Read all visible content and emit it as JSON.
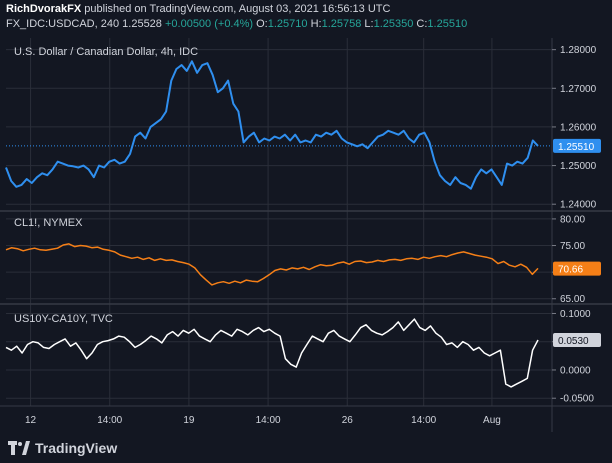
{
  "header": {
    "author": "RichDvorakFX",
    "published_text": "published on TradingView.com, August 03, 2021 16:56:13 UTC",
    "symbol": "FX_IDC:USDCAD, 240",
    "last": "1.25528",
    "change": "+0.00500 (+0.4%)",
    "o_label": "O:",
    "o_value": "1.25710",
    "h_label": "H:",
    "h_value": "1.25758",
    "l_label": "L:",
    "l_value": "1.25350",
    "c_label": "C:",
    "c_value": "1.25510"
  },
  "footer": {
    "logo_text": "TradingView"
  },
  "colors": {
    "background": "#131722",
    "usdcad": "#2f8fef",
    "crude": "#f57f17",
    "spread": "#ffffff",
    "grid": "#2a2e39"
  },
  "chart_data": [
    {
      "type": "line",
      "title": "U.S. Dollar / Canadian Dollar, 4h, IDC",
      "series": [
        {
          "values": [
            1.2495,
            1.246,
            1.2445,
            1.245,
            1.2465,
            1.2455,
            1.247,
            1.248,
            1.2475,
            1.249,
            1.251,
            1.2505,
            1.25,
            1.2498,
            1.2495,
            1.25,
            1.249,
            1.247,
            1.25,
            1.2495,
            1.251,
            1.2515,
            1.2505,
            1.251,
            1.253,
            1.2575,
            1.2585,
            1.257,
            1.26,
            1.261,
            1.262,
            1.264,
            1.272,
            1.275,
            1.276,
            1.2745,
            1.277,
            1.274,
            1.276,
            1.2765,
            1.2735,
            1.269,
            1.27,
            1.272,
            1.266,
            1.264,
            1.256,
            1.2575,
            1.2585,
            1.256,
            1.257,
            1.2565,
            1.2575,
            1.257,
            1.258,
            1.2565,
            1.258,
            1.256,
            1.2565,
            1.256,
            1.258,
            1.2575,
            1.2585,
            1.258,
            1.259,
            1.257,
            1.256,
            1.2555,
            1.255,
            1.2555,
            1.2545,
            1.256,
            1.2575,
            1.258,
            1.259,
            1.2585,
            1.258,
            1.259,
            1.257,
            1.256,
            1.258,
            1.2585,
            1.256,
            1.251,
            1.2475,
            1.246,
            1.245,
            1.247,
            1.2455,
            1.245,
            1.244,
            1.247,
            1.249,
            1.248,
            1.249,
            1.247,
            1.245,
            1.2505,
            1.25,
            1.251,
            1.2505,
            1.252,
            1.2565,
            1.2551
          ],
          "last_value": "1.25510"
        }
      ],
      "y_ticks": [
        "1.28000",
        "1.27000",
        "1.26000",
        "1.25000",
        "1.24000"
      ],
      "ylim": [
        1.2385,
        1.2825
      ]
    },
    {
      "type": "line",
      "title": "CL1!, NYMEX",
      "series": [
        {
          "values": [
            74.2,
            74.6,
            74.4,
            74.0,
            74.3,
            74.5,
            74.2,
            74.1,
            74.3,
            74.5,
            75.1,
            75.3,
            74.8,
            75.0,
            74.9,
            74.6,
            74.7,
            74.3,
            74.1,
            73.8,
            73.2,
            72.9,
            72.6,
            72.8,
            72.4,
            72.7,
            72.2,
            72.5,
            72.2,
            72.3,
            72.0,
            71.8,
            71.5,
            70.8,
            69.5,
            68.5,
            67.6,
            68.0,
            68.2,
            67.9,
            68.3,
            68.0,
            68.5,
            68.3,
            68.2,
            68.8,
            69.5,
            70.3,
            70.6,
            70.4,
            70.8,
            70.6,
            70.9,
            70.5,
            71.0,
            71.4,
            71.2,
            71.3,
            71.7,
            71.9,
            71.5,
            72.0,
            72.1,
            71.8,
            71.9,
            72.2,
            72.0,
            72.3,
            72.4,
            72.2,
            72.5,
            72.6,
            72.4,
            72.8,
            72.6,
            72.9,
            73.1,
            72.9,
            73.3,
            73.6,
            73.8,
            73.5,
            73.2,
            73.0,
            72.8,
            72.5,
            71.6,
            72.0,
            71.3,
            71.0,
            71.5,
            70.9,
            69.6,
            70.7
          ],
          "last_value": "70.66"
        }
      ],
      "y_ticks": [
        "80.00",
        "75.00",
        "70.00",
        "65.00"
      ],
      "ylim": [
        64.2,
        81.3
      ]
    },
    {
      "type": "line",
      "title": "US10Y-CA10Y, TVC",
      "series": [
        {
          "values": [
            0.04,
            0.035,
            0.042,
            0.03,
            0.045,
            0.05,
            0.048,
            0.04,
            0.038,
            0.045,
            0.05,
            0.055,
            0.042,
            0.048,
            0.035,
            0.02,
            0.03,
            0.045,
            0.05,
            0.052,
            0.055,
            0.06,
            0.058,
            0.05,
            0.04,
            0.045,
            0.052,
            0.06,
            0.055,
            0.048,
            0.062,
            0.068,
            0.06,
            0.07,
            0.065,
            0.072,
            0.06,
            0.055,
            0.05,
            0.062,
            0.07,
            0.065,
            0.06,
            0.072,
            0.068,
            0.062,
            0.07,
            0.075,
            0.068,
            0.072,
            0.065,
            0.06,
            0.02,
            0.01,
            0.005,
            0.03,
            0.045,
            0.06,
            0.055,
            0.05,
            0.065,
            0.07,
            0.06,
            0.055,
            0.05,
            0.062,
            0.075,
            0.08,
            0.07,
            0.065,
            0.062,
            0.068,
            0.075,
            0.085,
            0.07,
            0.08,
            0.09,
            0.075,
            0.07,
            0.078,
            0.065,
            0.058,
            0.045,
            0.048,
            0.04,
            0.05,
            0.045,
            0.035,
            0.04,
            0.03,
            0.025,
            0.03,
            0.035,
            -0.025,
            -0.03,
            -0.025,
            -0.02,
            -0.015,
            0.035,
            0.053
          ],
          "last_value": "0.0530"
        }
      ],
      "y_ticks": [
        "0.1000",
        "0.0500",
        "0.0000",
        "-0.0500"
      ],
      "ylim": [
        -0.062,
        0.115
      ]
    }
  ],
  "x_axis": {
    "ticks": [
      "12",
      "14:00",
      "19",
      "14:00",
      "26",
      "14:00",
      "Aug",
      "14:00"
    ],
    "tick_positions": [
      0.045,
      0.19,
      0.335,
      0.48,
      0.625,
      0.765,
      0.89,
      1.03
    ]
  }
}
